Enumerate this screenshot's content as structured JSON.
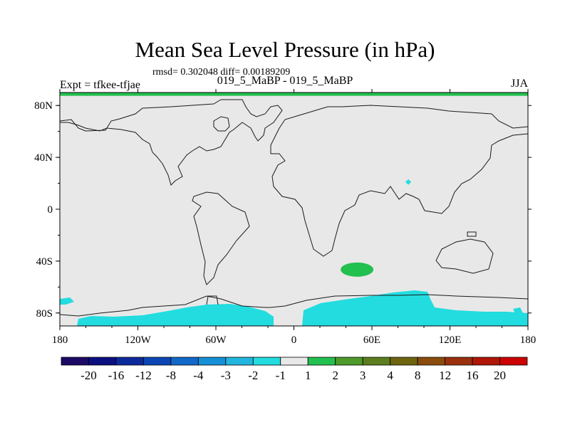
{
  "chart_data": {
    "type": "map-contour",
    "title": "Mean Sea Level Pressure (in hPa)",
    "stats_text": "rmsd= 0.302048 diff= 0.00189209",
    "left_label": "Expt = tfkee-tfjae",
    "center_label": "019_5_MaBP - 019_5_MaBP",
    "right_label": "JJA",
    "xlim": [
      -180,
      180
    ],
    "ylim": [
      -90,
      90
    ],
    "x_ticks": [
      {
        "value": -180,
        "label": "180"
      },
      {
        "value": -120,
        "label": "120W"
      },
      {
        "value": -60,
        "label": "60W"
      },
      {
        "value": 0,
        "label": "0"
      },
      {
        "value": 60,
        "label": "60E"
      },
      {
        "value": 120,
        "label": "120E"
      },
      {
        "value": 180,
        "label": "180"
      }
    ],
    "y_ticks": [
      {
        "value": 80,
        "label": "80N"
      },
      {
        "value": 40,
        "label": "40N"
      },
      {
        "value": 0,
        "label": "0"
      },
      {
        "value": -40,
        "label": "40S"
      },
      {
        "value": -80,
        "label": "80S"
      }
    ],
    "colorbar": {
      "colors": [
        "#1c0a66",
        "#0c0f80",
        "#0d2a9c",
        "#0b46b4",
        "#1268c8",
        "#1690d6",
        "#21b6de",
        "#22dcdf",
        "#e8e8e8",
        "#22c04e",
        "#4e9a2a",
        "#5c7e1e",
        "#6e6410",
        "#8a4c0c",
        "#9a300c",
        "#b01606",
        "#cc0202"
      ],
      "labels": [
        "-20",
        "-16",
        "-12",
        "-8",
        "-4",
        "-3",
        "-2",
        "-1",
        "1",
        "2",
        "3",
        "4",
        "8",
        "12",
        "16",
        "20"
      ]
    },
    "features": [
      {
        "name": "south-atlantic-positive-anomaly",
        "level": "1 to 2",
        "color": "#22c04e",
        "center": [
          48,
          -46
        ]
      },
      {
        "name": "antarctic-negative-anomaly",
        "level": "-2 to -1",
        "color": "#22dcdf",
        "lon_range": [
          -165,
          180
        ],
        "lat_range": [
          -90,
          -72
        ]
      },
      {
        "name": "tibet-negative-anomaly",
        "level": "-2 to -1",
        "color": "#22dcdf",
        "center": [
          88,
          21
        ]
      },
      {
        "name": "north-pole-positive-band",
        "level": "1 to 2",
        "color": "#22c04e",
        "lat_range": [
          88,
          90
        ]
      }
    ],
    "background_color": "#e8e8e8"
  }
}
